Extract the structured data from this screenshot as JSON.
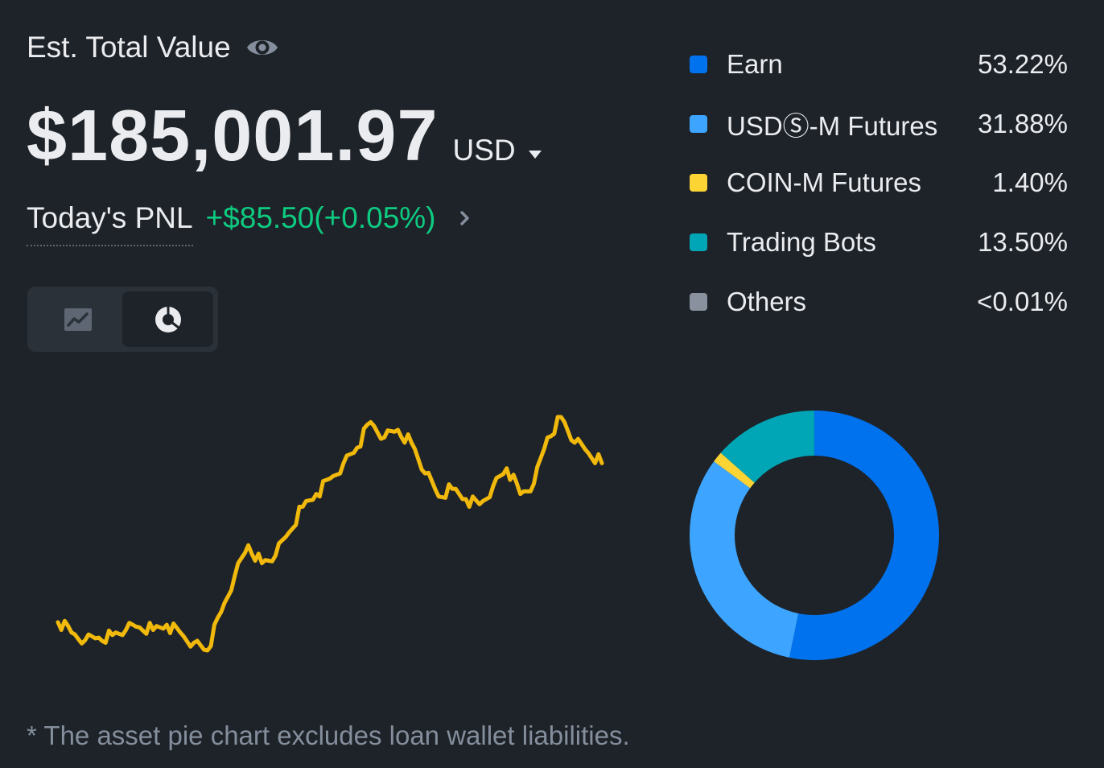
{
  "header": {
    "title": "Est. Total Value",
    "visibility_icon": "eye-icon",
    "balance": "$185,001.97",
    "currency": "USD",
    "pnl_label": "Today's PNL",
    "pnl_value": "+$85.50(+0.05%)"
  },
  "view_toggle": {
    "options": [
      "line-chart-icon",
      "pie-chart-icon"
    ],
    "selected": "pie-chart-icon"
  },
  "legend": [
    {
      "name": "Earn",
      "pct": "53.22%",
      "color": "#0072EE"
    },
    {
      "name": "USDⓈ-M Futures",
      "pct": "31.88%",
      "color": "#3DA5FF"
    },
    {
      "name": "COIN-M Futures",
      "pct": "1.40%",
      "color": "#FCD535"
    },
    {
      "name": "Trading Bots",
      "pct": "13.50%",
      "color": "#00A6B5"
    },
    {
      "name": "Others",
      "pct": "<0.01%",
      "color": "#8A919E"
    }
  ],
  "colors": {
    "background": "#1E2329",
    "positive": "#0ECB81",
    "line": "#F0B90B",
    "muted": "#848E9C"
  },
  "chart_data": [
    {
      "type": "line",
      "series": [
        {
          "values": [
            10,
            6,
            3,
            4,
            5,
            7,
            8,
            7,
            9,
            6,
            2,
            -1,
            14,
            28,
            40,
            33,
            36,
            45,
            55,
            60,
            66,
            72,
            78,
            88,
            82,
            85,
            80,
            68,
            59,
            62,
            58,
            56,
            63,
            70,
            60,
            64,
            82,
            90,
            80,
            76,
            72
          ]
        }
      ]
    },
    {
      "type": "pie",
      "donut": true,
      "categories": [
        "Earn",
        "USDⓈ-M Futures",
        "COIN-M Futures",
        "Trading Bots",
        "Others"
      ],
      "values": [
        53.22,
        31.88,
        1.4,
        13.5,
        0.01
      ]
    }
  ],
  "footnote": "*  The asset pie chart excludes loan wallet liabilities."
}
